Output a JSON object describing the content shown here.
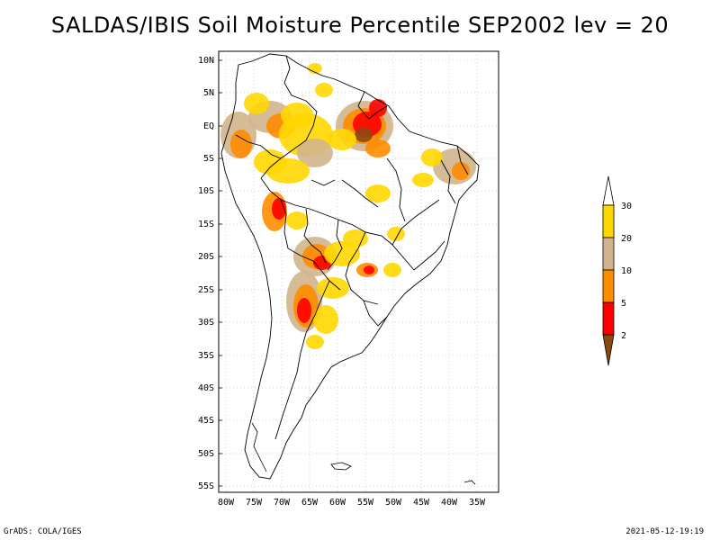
{
  "title": "SALDAS/IBIS Soil Moisture Percentile SEP2002 lev = 20",
  "map": {
    "lat_labels": [
      "10N",
      "5N",
      "EQ",
      "5S",
      "10S",
      "15S",
      "20S",
      "25S",
      "30S",
      "35S",
      "40S",
      "45S",
      "50S",
      "55S"
    ],
    "lon_labels": [
      "80W",
      "75W",
      "70W",
      "65W",
      "60W",
      "55W",
      "50W",
      "45W",
      "40W",
      "35W"
    ],
    "colors": {
      "brown": "#8b4a12",
      "red": "#ff0000",
      "orange": "#ff8c00",
      "tan": "#d2b48c",
      "yellow": "#ffd700"
    }
  },
  "legend": {
    "levels": [
      "30",
      "20",
      "10",
      "5",
      "2"
    ],
    "colors": [
      "#ffd700",
      "#d2b48c",
      "#ff8c00",
      "#ff0000",
      "#8b4a12"
    ]
  },
  "footer": {
    "left": "GrADS: COLA/IGES",
    "right": "2021-05-12-19:19"
  }
}
